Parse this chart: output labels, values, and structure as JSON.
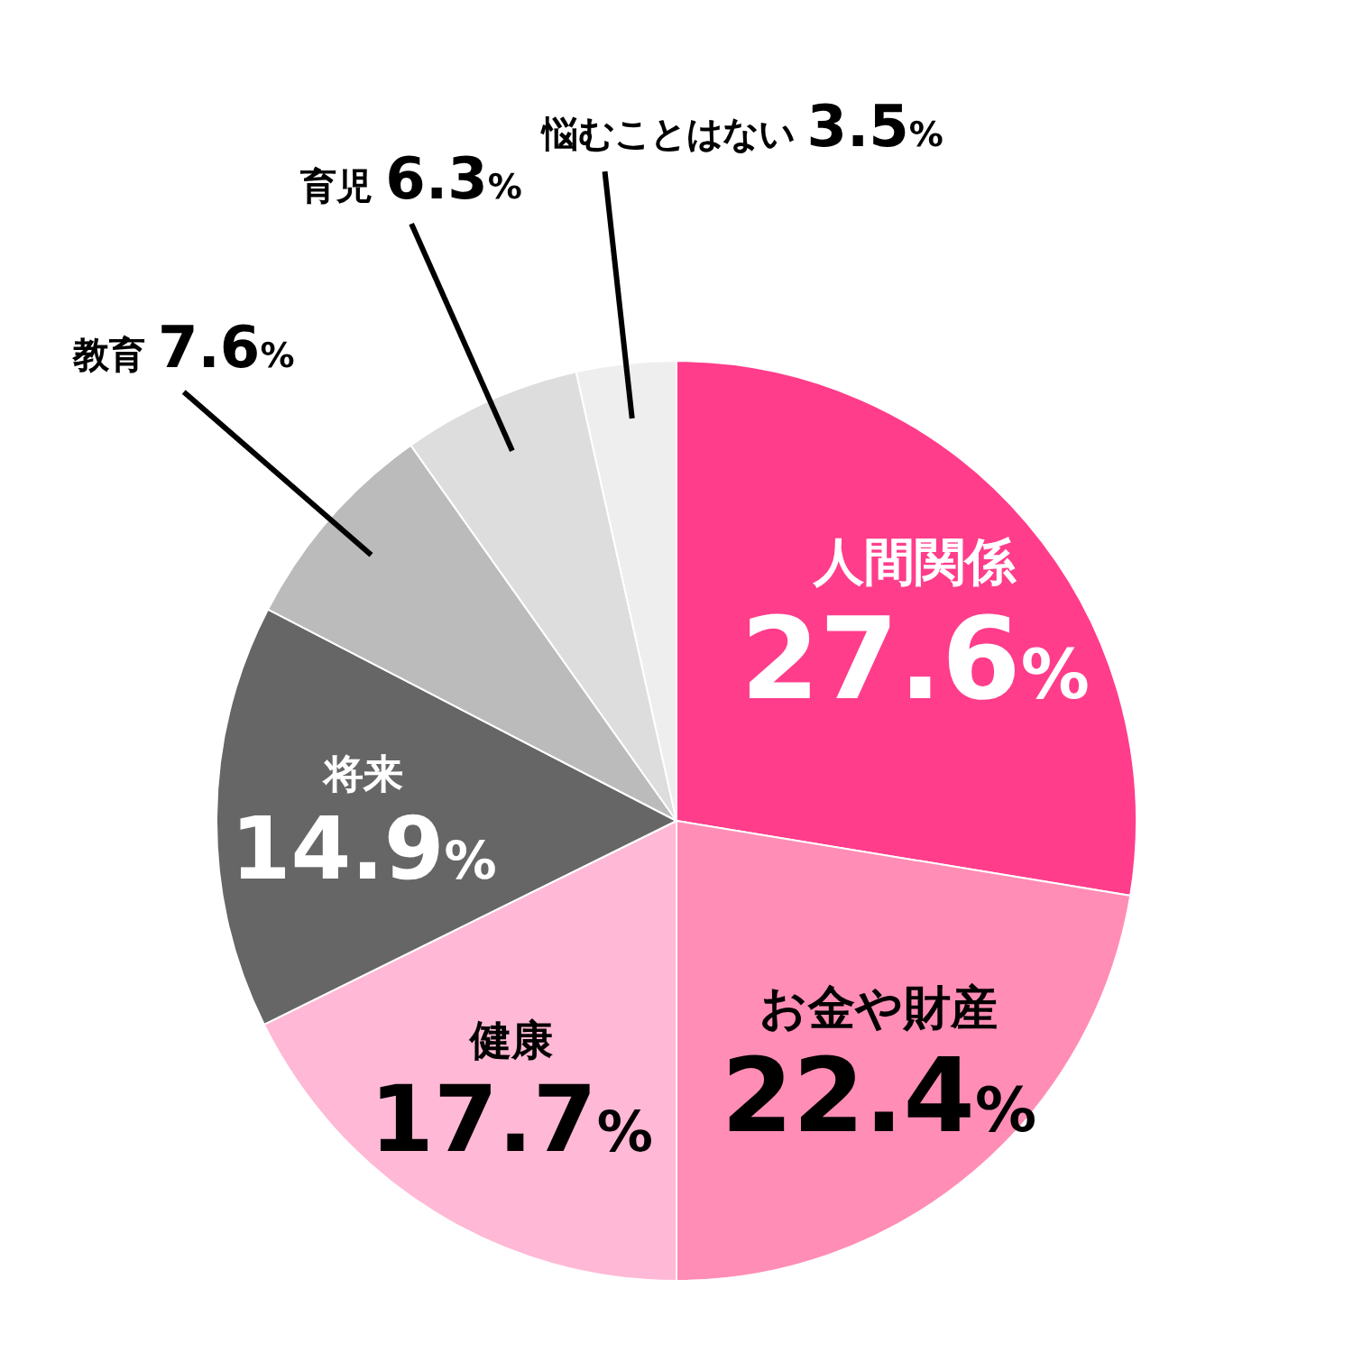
{
  "chart_data": {
    "type": "pie",
    "categories": [
      "人間関係",
      "お金や財産",
      "健康",
      "将来",
      "教育",
      "育児",
      "悩むことはない"
    ],
    "values": [
      27.6,
      22.4,
      17.7,
      14.9,
      7.6,
      6.3,
      3.5
    ],
    "value_labels": [
      "27.6%",
      "22.4%",
      "17.7%",
      "14.9%",
      "7.6%",
      "6.3%",
      "3.5%"
    ],
    "colors": [
      "#ff3d8b",
      "#ff8db5",
      "#ffb8d5",
      "#666666",
      "#bbbbbb",
      "#dddddd",
      "#eeeeee"
    ],
    "legend": false
  }
}
